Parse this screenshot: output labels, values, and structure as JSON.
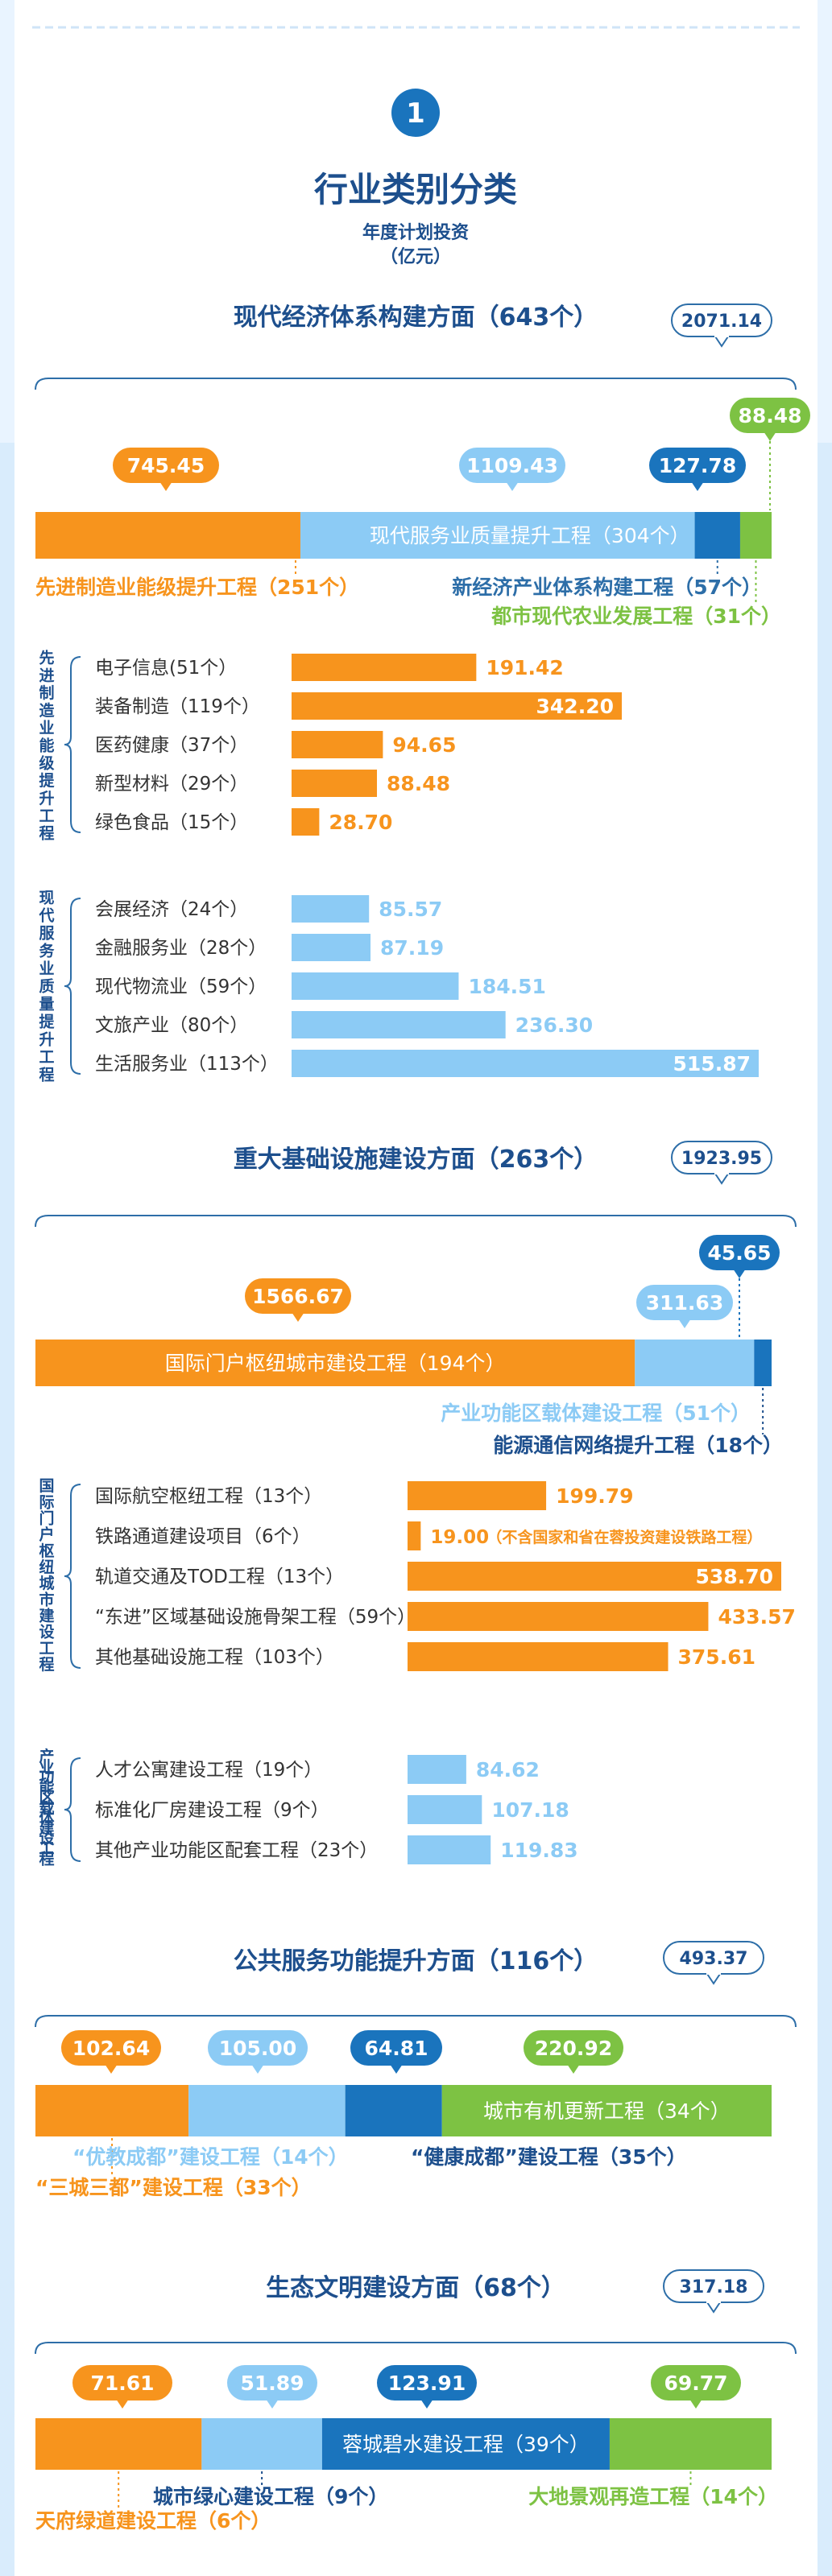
{
  "colors": {
    "orange": "#f7941d",
    "light_blue": "#8ccbf5",
    "dark_blue": "#1a74bd",
    "green": "#7dc243",
    "heading": "#1d4f8d",
    "text_blue": "#2d6ea8",
    "background": "#ffffff",
    "frame": "#e9f4ff"
  },
  "header": {
    "badge": "1",
    "title": "行业类别分类",
    "unit_line1": "年度计划投资",
    "unit_line2": "（亿元）"
  },
  "chart_data": [
    {
      "type": "bar",
      "title": "现代经济体系构建方面（643个）",
      "total": "2071.14",
      "series": [
        {
          "name": "先进制造业能级提升工程（251个）",
          "value": 745.45,
          "color": "orange"
        },
        {
          "name": "现代服务业质量提升工程（304个）",
          "value": 1109.43,
          "color": "light_blue"
        },
        {
          "name": "新经济产业体系构建工程（57个）",
          "value": 127.78,
          "color": "dark_blue"
        },
        {
          "name": "都市现代农业发展工程（31个）",
          "value": 88.48,
          "color": "green"
        }
      ],
      "groups": [
        {
          "label": "先进制造业能级提升工程",
          "color": "orange",
          "max": 342.2,
          "items": [
            {
              "label": "电子信息(51个）",
              "value": 191.42
            },
            {
              "label": "装备制造（119个）",
              "value": 342.2,
              "display": "342.20"
            },
            {
              "label": "医药健康（37个）",
              "value": 94.65
            },
            {
              "label": "新型材料（29个）",
              "value": 88.48
            },
            {
              "label": "绿色食品（15个）",
              "value": 28.7,
              "display": "28.70"
            }
          ]
        },
        {
          "label": "现代服务业质量提升工程",
          "color": "light_blue",
          "max": 515.87,
          "items": [
            {
              "label": "会展经济（24个）",
              "value": 85.57
            },
            {
              "label": "金融服务业（28个）",
              "value": 87.19
            },
            {
              "label": "现代物流业（59个）",
              "value": 184.51
            },
            {
              "label": "文旅产业（80个）",
              "value": 236.3,
              "display": "236.30"
            },
            {
              "label": "生活服务业（113个）",
              "value": 515.87
            }
          ]
        }
      ]
    },
    {
      "type": "bar",
      "title": "重大基础设施建设方面（263个）",
      "total": "1923.95",
      "series": [
        {
          "name": "国际门户枢纽城市建设工程（194个）",
          "value": 1566.67,
          "color": "orange"
        },
        {
          "name": "产业功能区载体建设工程（51个）",
          "value": 311.63,
          "color": "light_blue"
        },
        {
          "name": "能源通信网络提升工程（18个）",
          "value": 45.65,
          "color": "dark_blue"
        }
      ],
      "groups": [
        {
          "label": "国际门户枢纽城市建设工程",
          "color": "orange",
          "max": 538.7,
          "items": [
            {
              "label": "国际航空枢纽工程（13个）",
              "value": 199.79
            },
            {
              "label": "铁路通道建设项目（6个）",
              "value": 19.0,
              "display": "19.00",
              "note": "（不含国家和省在蓉投资建设铁路工程）"
            },
            {
              "label": "轨道交通及TOD工程（13个）",
              "value": 538.7,
              "display": "538.70"
            },
            {
              "label": "“东进”区域基础设施骨架工程（59个）",
              "value": 433.57
            },
            {
              "label": "其他基础设施工程（103个）",
              "value": 375.61
            }
          ]
        },
        {
          "label": "产业功能区载体建设工程",
          "color": "light_blue",
          "max": 538.7,
          "items": [
            {
              "label": "人才公寓建设工程（19个）",
              "value": 84.62
            },
            {
              "label": "标准化厂房建设工程（9个）",
              "value": 107.18
            },
            {
              "label": "其他产业功能区配套工程（23个）",
              "value": 119.83
            }
          ]
        }
      ]
    },
    {
      "type": "bar",
      "title": "公共服务功能提升方面（116个）",
      "total": "493.37",
      "series": [
        {
          "name": "“三城三都”建设工程（33个）",
          "value": 102.64,
          "color": "orange"
        },
        {
          "name": "“优教成都”建设工程（14个）",
          "value": 105.0,
          "display": "105.00",
          "color": "light_blue"
        },
        {
          "name": "“健康成都”建设工程（35个）",
          "value": 64.81,
          "color": "dark_blue"
        },
        {
          "name": "城市有机更新工程（34个）",
          "value": 220.92,
          "color": "green"
        }
      ],
      "groups": []
    },
    {
      "type": "bar",
      "title": "生态文明建设方面（68个）",
      "total": "317.18",
      "series": [
        {
          "name": "天府绿道建设工程（6个）",
          "value": 71.61,
          "color": "orange"
        },
        {
          "name": "城市绿心建设工程（9个）",
          "value": 51.89,
          "color": "light_blue"
        },
        {
          "name": "蓉城碧水建设工程（39个）",
          "value": 123.91,
          "color": "dark_blue"
        },
        {
          "name": "大地景观再造工程（14个）",
          "value": 69.77,
          "color": "green"
        }
      ],
      "groups": []
    }
  ]
}
